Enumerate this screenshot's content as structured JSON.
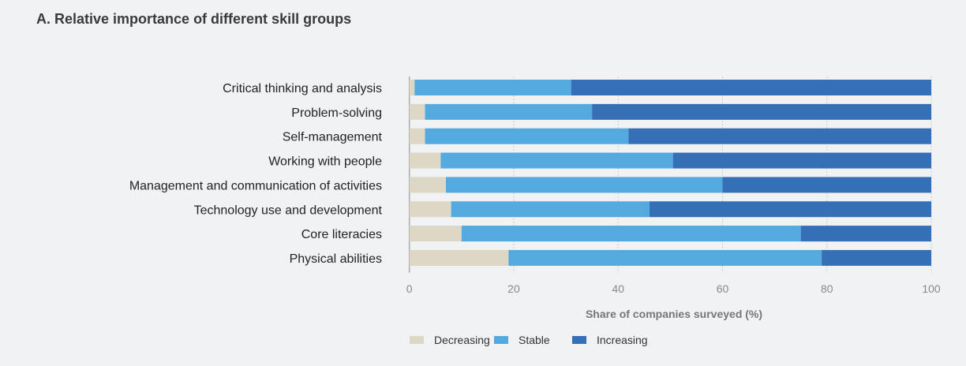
{
  "chart_data": {
    "type": "bar",
    "orientation": "horizontal",
    "stacked": true,
    "title": "A. Relative importance of different skill groups",
    "xlabel": "Share of companies surveyed (%)",
    "ylabel": "",
    "xlim": [
      0,
      100
    ],
    "xticks": [
      0,
      20,
      40,
      60,
      80,
      100
    ],
    "xtick_labels": [
      "0",
      "20",
      "40",
      "60",
      "80",
      "100"
    ],
    "grid": "vertical dotted",
    "legend_position": "bottom-left",
    "categories": [
      "Critical thinking and analysis",
      "Problem-solving",
      "Self-management",
      "Working with people",
      "Management and communication of activities",
      "Technology use and development",
      "Core literacies",
      "Physical abilities"
    ],
    "series": [
      {
        "name": "Decreasing",
        "color": "#ddd7c5",
        "values": [
          1,
          3,
          3,
          6,
          7,
          8,
          10,
          19
        ]
      },
      {
        "name": "Stable",
        "color": "#54a9df",
        "values": [
          30,
          32,
          39,
          44.5,
          53,
          38,
          65,
          60
        ]
      },
      {
        "name": "Increasing",
        "color": "#356fb5",
        "values": [
          69,
          65,
          58,
          49.5,
          40,
          54,
          25,
          21
        ]
      }
    ]
  }
}
